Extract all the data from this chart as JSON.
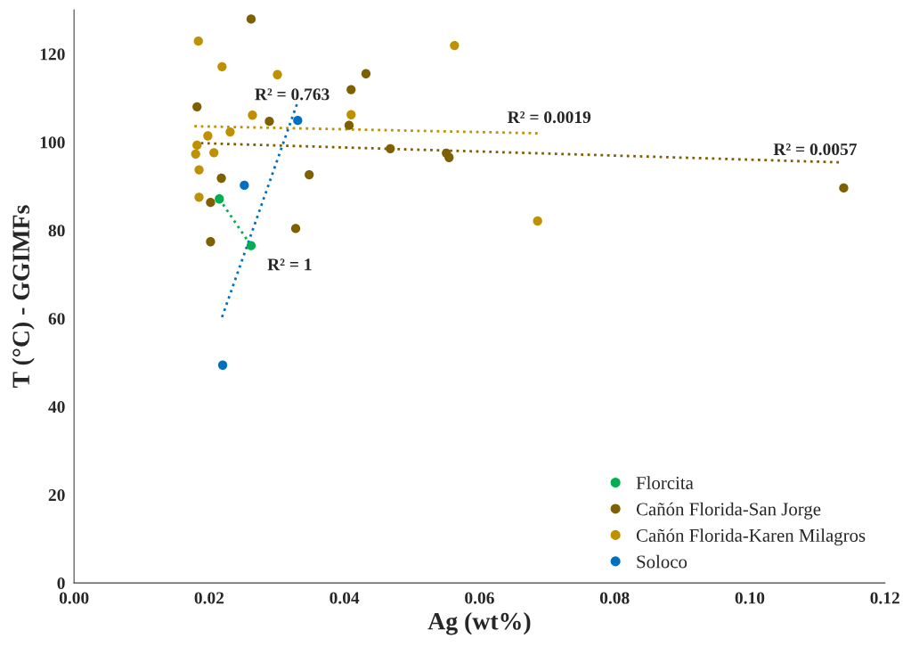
{
  "chart_data": {
    "type": "scatter",
    "xlabel": "Ag (wt%)",
    "ylabel": "T (°C) - GGIMFs",
    "xlim": [
      0,
      0.12
    ],
    "ylim": [
      0,
      130
    ],
    "xticks": [
      {
        "value": 0,
        "label": "0.00"
      },
      {
        "value": 0.02,
        "label": "0.02"
      },
      {
        "value": 0.04,
        "label": "0.04"
      },
      {
        "value": 0.06,
        "label": "0.06"
      },
      {
        "value": 0.08,
        "label": "0.08"
      },
      {
        "value": 0.1,
        "label": "0.10"
      },
      {
        "value": 0.12,
        "label": "0.12"
      }
    ],
    "yticks": [
      0,
      20,
      40,
      60,
      80,
      100,
      120
    ],
    "grid": false,
    "legend": "bottom right",
    "marker": "circle",
    "series": [
      {
        "name": "Florcita",
        "color": "#00b050",
        "x": [
          0.0215,
          0.0262
        ],
        "values": [
          87.1,
          76.5
        ]
      },
      {
        "name": "Cañón Florida-San Jorge",
        "color": "#7f6000",
        "x": [
          0.0262,
          0.0432,
          0.041,
          0.0182,
          0.0289,
          0.0407,
          0.0468,
          0.0551,
          0.0555,
          0.0348,
          0.0218,
          0.0202,
          0.0328,
          0.0202,
          0.1139
        ],
        "values": [
          127.9,
          115.5,
          111.9,
          108.0,
          104.7,
          103.8,
          98.5,
          97.5,
          96.5,
          92.6,
          91.8,
          86.3,
          80.4,
          77.4,
          89.6
        ]
      },
      {
        "name": "Cañón Florida-Karen Milagros",
        "color": "#bf9000",
        "x": [
          0.0184,
          0.0219,
          0.0301,
          0.0264,
          0.041,
          0.0231,
          0.0198,
          0.0182,
          0.018,
          0.0207,
          0.0185,
          0.0185,
          0.0686,
          0.0563
        ],
        "values": [
          122.9,
          117.1,
          115.3,
          106.1,
          106.2,
          102.3,
          101.4,
          99.3,
          97.3,
          97.6,
          93.7,
          87.5,
          82.1,
          121.9
        ]
      },
      {
        "name": "Soloco",
        "color": "#0070c0",
        "x": [
          0.0331,
          0.0252,
          0.022
        ],
        "values": [
          104.9,
          90.2,
          49.4
        ]
      },
      {
        "type": "line",
        "color": "#00b050",
        "line_style": "dotted",
        "marker": "none",
        "x": [
          0.0215,
          0.0262
        ],
        "values": [
          87.1,
          76.5
        ]
      },
      {
        "type": "line",
        "color": "#7f6000",
        "line_style": "dotted",
        "marker": "none",
        "x": [
          0.0178,
          0.1134
        ],
        "values": [
          99.8,
          95.4
        ]
      },
      {
        "type": "line",
        "color": "#bf9000",
        "line_style": "dotted",
        "marker": "none",
        "x": [
          0.0178,
          0.0686
        ],
        "values": [
          103.6,
          102.0
        ]
      },
      {
        "type": "line",
        "color": "#0070c0",
        "line_style": "dotted",
        "marker": "none",
        "x": [
          0.0219,
          0.0331
        ],
        "values": [
          60.3,
          109.1
        ]
      }
    ],
    "annotations": [
      "R² = 0.763",
      "R² = 1",
      "R² = 0.0019",
      "R² = 0.0057"
    ]
  }
}
